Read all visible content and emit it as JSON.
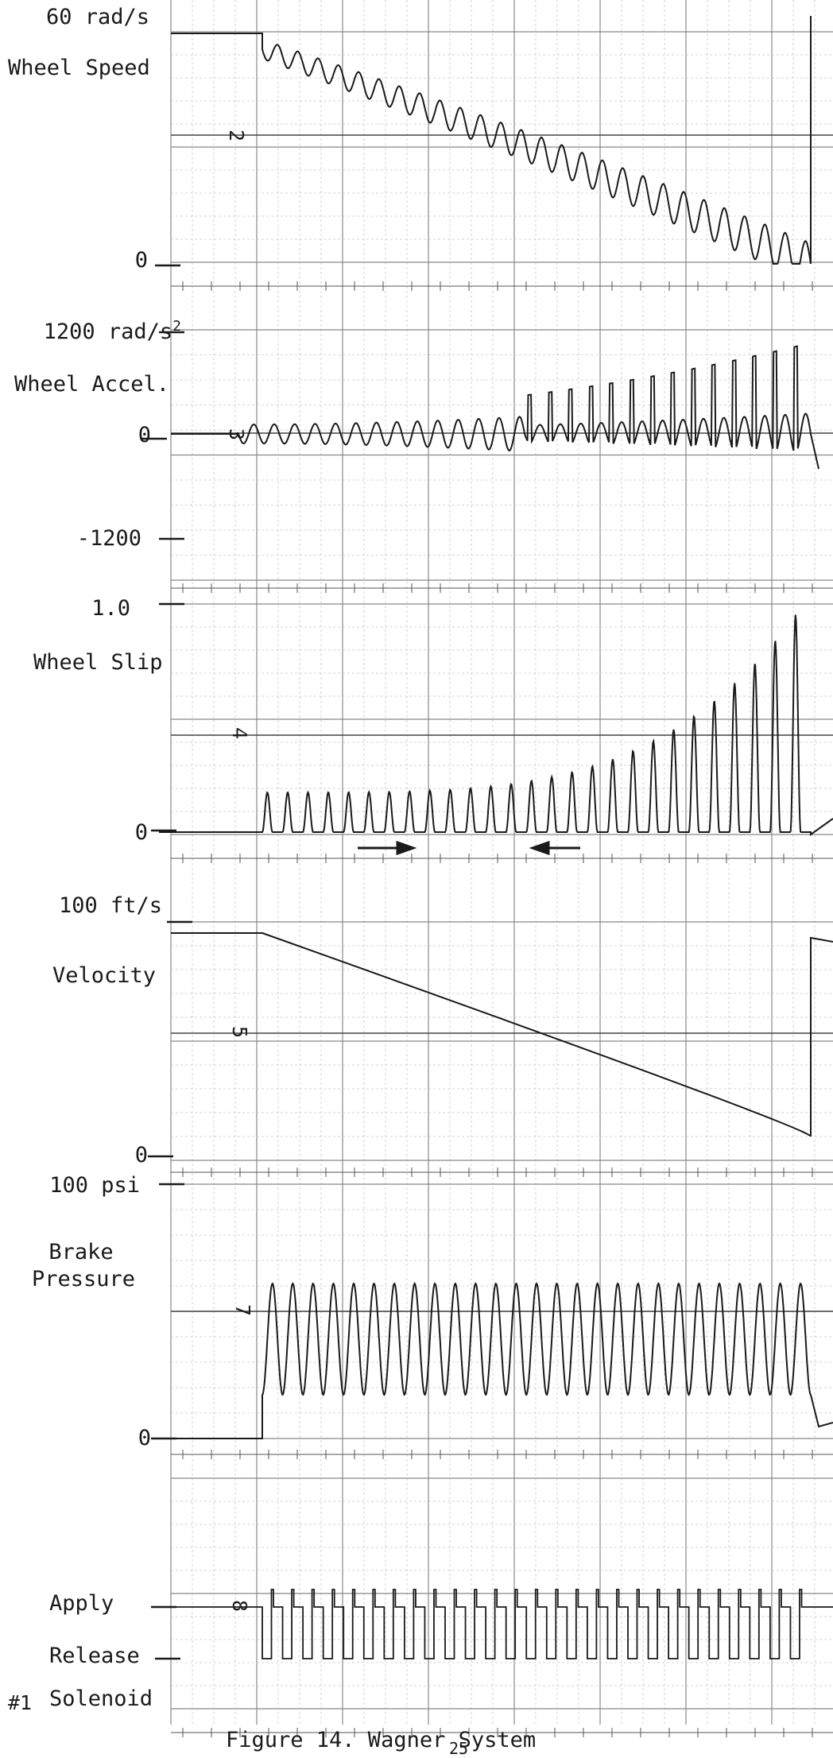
{
  "chart_data": [
    {
      "type": "line",
      "unit_label": "60 rad/s",
      "label": "Wheel Speed",
      "zero_label": "0",
      "trace_label": "2"
    },
    {
      "type": "line",
      "top_label": "1200 rad/s",
      "top_label_sup": "2",
      "label": "Wheel Accel.",
      "zero_label": "0",
      "bottom_label": "-1200",
      "trace_label": "3"
    },
    {
      "type": "line",
      "top_label": "1.0",
      "label": "Wheel Slip",
      "zero_label": "0",
      "trace_label": "4"
    },
    {
      "type": "line",
      "top_label": "100 ft/s",
      "label": "Velocity",
      "zero_label": "0",
      "trace_label": "5"
    },
    {
      "type": "line",
      "top_label": "100 psi",
      "label_line1": "Brake",
      "label_line2": "Pressure",
      "zero_label": "0",
      "trace_label": "7"
    },
    {
      "type": "line",
      "apply_label": "Apply",
      "release_label": "Release",
      "label": "Solenoid",
      "index_label": "#1",
      "trace_label": "8"
    }
  ],
  "caption": "Figure  14. Wagner System",
  "page_number": "25"
}
